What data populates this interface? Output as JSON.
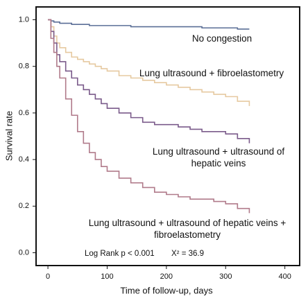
{
  "chart_data": {
    "type": "line",
    "x_label": "Time of follow-up, days",
    "y_label": "Survival rate",
    "x": [
      0,
      5,
      10,
      15,
      20,
      30,
      40,
      50,
      60,
      70,
      80,
      90,
      100,
      120,
      140,
      160,
      180,
      200,
      220,
      240,
      260,
      280,
      300,
      320,
      340
    ],
    "series": [
      {
        "name": "No congestion",
        "color": "#5a6e96",
        "values": [
          1.0,
          0.995,
          0.99,
          0.99,
          0.985,
          0.985,
          0.98,
          0.98,
          0.98,
          0.975,
          0.975,
          0.975,
          0.975,
          0.975,
          0.97,
          0.97,
          0.97,
          0.97,
          0.97,
          0.97,
          0.965,
          0.965,
          0.965,
          0.96,
          0.96
        ]
      },
      {
        "name": "Lung ultrasound + fibroelastometry",
        "color": "#e6c9a0",
        "values": [
          1.0,
          0.97,
          0.93,
          0.9,
          0.88,
          0.86,
          0.84,
          0.83,
          0.82,
          0.81,
          0.8,
          0.79,
          0.78,
          0.76,
          0.75,
          0.74,
          0.73,
          0.72,
          0.71,
          0.7,
          0.69,
          0.68,
          0.67,
          0.65,
          0.63
        ]
      },
      {
        "name": "Lung ultrasound + ultrasound of hepatic veins",
        "color": "#7a5a8a",
        "values": [
          1.0,
          0.95,
          0.9,
          0.85,
          0.82,
          0.78,
          0.75,
          0.72,
          0.7,
          0.68,
          0.66,
          0.64,
          0.62,
          0.6,
          0.58,
          0.56,
          0.55,
          0.55,
          0.54,
          0.53,
          0.52,
          0.52,
          0.51,
          0.49,
          0.47
        ]
      },
      {
        "name": "Lung ultrasound + ultrasound of hepatic veins + fibroelastometry",
        "color": "#b07a8a",
        "values": [
          1.0,
          0.92,
          0.86,
          0.8,
          0.75,
          0.66,
          0.59,
          0.52,
          0.47,
          0.43,
          0.4,
          0.37,
          0.35,
          0.32,
          0.3,
          0.28,
          0.26,
          0.25,
          0.24,
          0.23,
          0.23,
          0.22,
          0.21,
          0.19,
          0.17
        ]
      }
    ],
    "annotations": [
      "Log Rank p < 0.001",
      "X² = 36.9"
    ],
    "xlim": [
      -20,
      425
    ],
    "ylim": [
      -0.055,
      1.055
    ],
    "xticks": [
      0,
      100,
      200,
      300,
      400
    ],
    "yticks": [
      {
        "value": 0,
        "label": "0.0"
      },
      0.2,
      0.4,
      0.6,
      0.8,
      {
        "value": 1,
        "label": "1.0"
      }
    ]
  }
}
